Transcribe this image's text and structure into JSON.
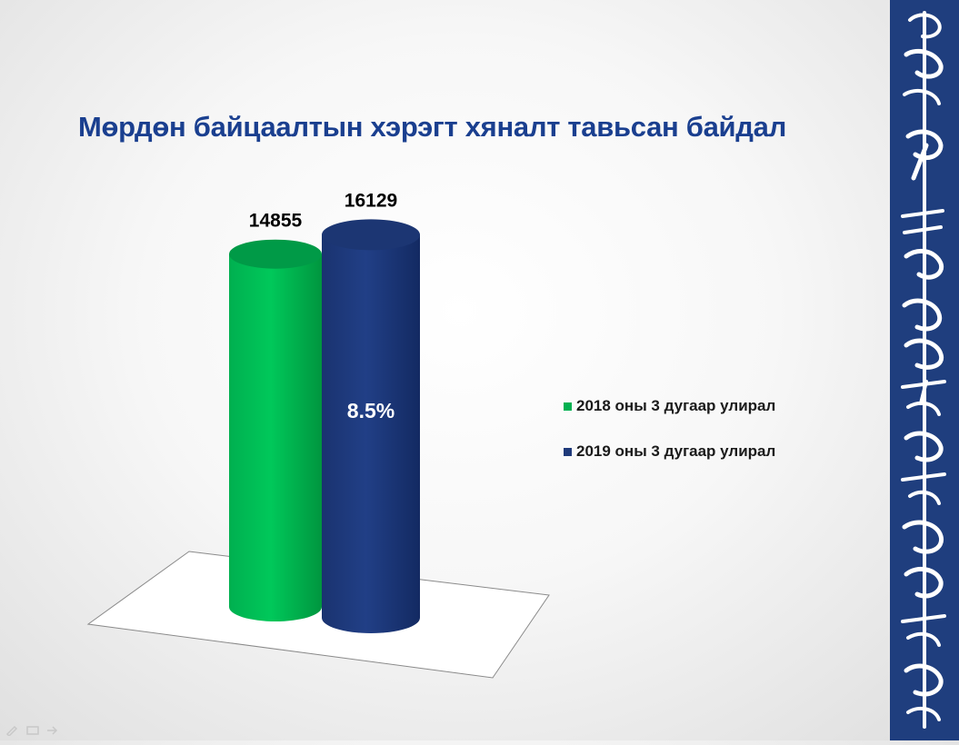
{
  "slide": {
    "title": "Мөрдөн байцаалтын хэрэгт хяналт тавьсан байдал"
  },
  "chart_data": {
    "type": "bar",
    "style": "3d-cylinder",
    "title": "Мөрдөн байцаалтын хэрэгт хяналт тавьсан байдал",
    "series": [
      {
        "name": "2018 оны 3 дугаар улирал",
        "value": 14855,
        "color": "#00b050"
      },
      {
        "name": "2019 оны 3 дугаар улирал",
        "value": 16129,
        "color": "#1f3a7a"
      }
    ],
    "ylim": [
      0,
      16500
    ],
    "annotation": "8.5%",
    "legend_position": "right",
    "grid": false
  },
  "colors": {
    "title": "#1a3f8f",
    "side_band": "#1f3e7e",
    "green": "#00b050",
    "navy": "#1f3a7a"
  },
  "side_band": {
    "content": "mongolian-script-emblem"
  }
}
